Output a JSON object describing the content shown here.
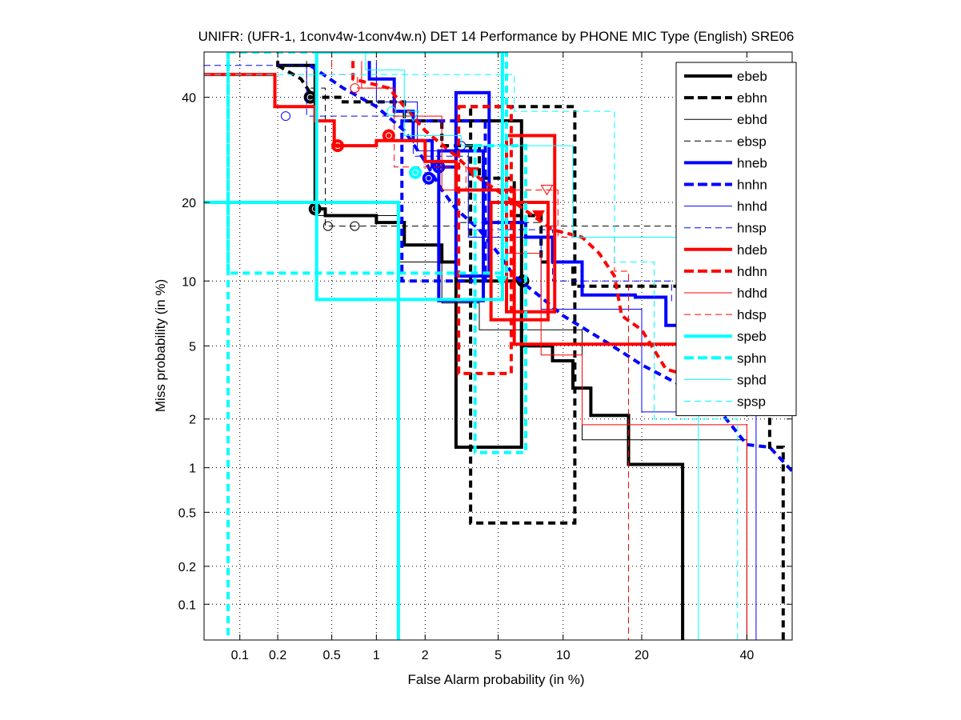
{
  "chart_data": {
    "type": "line",
    "subtype": "DET",
    "title": "UNIFR: (UFR-1, 1conv4w-1conv4w.n) DET 14 Performance by PHONE MIC Type (English) SRE06",
    "xlabel": "False Alarm probability (in %)",
    "ylabel": "Miss probability (in %)",
    "xscale": "probit",
    "yscale": "probit",
    "xlim": [
      0.05,
      50
    ],
    "ylim": [
      0.05,
      50
    ],
    "xticks": [
      0.1,
      0.2,
      0.5,
      1,
      2,
      5,
      10,
      20,
      40
    ],
    "xtick_labels": [
      "0.1",
      "0.2",
      "0.5",
      "1",
      "2",
      "5",
      "10",
      "20",
      "40"
    ],
    "yticks": [
      0.1,
      0.2,
      0.5,
      1,
      2,
      5,
      10,
      20,
      40
    ],
    "ytick_labels": [
      "0.1",
      "0.2",
      "0.5",
      "1",
      "2",
      "5",
      "10",
      "20",
      "40"
    ],
    "grid": true,
    "legend_position": "top-right",
    "series": [
      {
        "name": "ebeb",
        "color": "#000000",
        "style": "solid-thick",
        "x": [
          0.2,
          0.2,
          0.38,
          0.38,
          0.45,
          0.45,
          1.0,
          1.0,
          1.5,
          1.5,
          2.5,
          2.5,
          3.0,
          3.0,
          6.5,
          6.5,
          9.0,
          9.0,
          11.0,
          11.0,
          13.0,
          13.0,
          18.0,
          18.0,
          27.0,
          27.0
        ],
        "y": [
          48,
          47,
          47,
          19,
          19,
          18,
          18,
          17,
          17,
          14,
          14,
          12,
          12,
          10,
          10,
          5,
          5,
          4.2,
          4.2,
          3.0,
          3.0,
          2.1,
          2.1,
          1.05,
          1.05,
          0.05
        ],
        "markers": [
          {
            "x": 0.38,
            "y": 19,
            "shape": "circle-filled"
          },
          {
            "x": 6.6,
            "y": 10,
            "shape": "circle-filled"
          }
        ],
        "boxes": [
          {
            "x0": 3.0,
            "x1": 6.5,
            "y0": 1.35,
            "y1": 35
          }
        ]
      },
      {
        "name": "ebhn",
        "color": "#000000",
        "style": "dashed-thick",
        "x": [
          0.2,
          0.3,
          0.35,
          0.35,
          0.6,
          0.6,
          1.5,
          1.5,
          2.5,
          2.5,
          4.0,
          4.0,
          6.0,
          6.0,
          8.0,
          8.0,
          11.0,
          11.0,
          30,
          30,
          45,
          45,
          48,
          48
        ],
        "y": [
          47,
          44,
          41,
          40,
          40,
          39,
          39,
          35,
          35,
          30,
          30,
          24,
          24,
          18,
          18,
          12,
          12,
          9.5,
          9.5,
          8,
          8,
          1.35,
          1.35,
          0.05
        ],
        "markers": [
          {
            "x": 0.35,
            "y": 40,
            "shape": "circle-filled"
          }
        ],
        "boxes": [
          {
            "x0": 3.6,
            "x1": 11.2,
            "y0": 0.42,
            "y1": 38
          }
        ]
      },
      {
        "name": "ebhd",
        "color": "#000000",
        "style": "solid-thin",
        "x": [
          0.38,
          0.38,
          1.4,
          1.4,
          2.5,
          2.5,
          4.0,
          4.0,
          12,
          12,
          40,
          40
        ],
        "y": [
          45,
          18,
          18,
          12,
          12,
          8,
          8,
          6,
          6,
          1.5,
          1.5,
          0.05
        ],
        "markers": [],
        "boxes": []
      },
      {
        "name": "ebsp",
        "color": "#000000",
        "style": "dashed-thin",
        "x": [
          0.33,
          0.33,
          0.45,
          0.45,
          0.7,
          0.7,
          1.4,
          1.4,
          3.0,
          3.0,
          8.0,
          8.0,
          50
        ],
        "y": [
          48,
          42,
          42,
          16.5,
          16.5,
          16.5,
          16.5,
          16.5,
          16.5,
          17,
          17,
          16.5,
          16.5
        ],
        "markers": [
          {
            "x": 0.47,
            "y": 16.5,
            "shape": "circle-open"
          },
          {
            "x": 0.72,
            "y": 16.5,
            "shape": "circle-open"
          }
        ],
        "boxes": []
      },
      {
        "name": "hneb",
        "color": "#0000ff",
        "style": "solid-thick",
        "x": [
          0.9,
          0.9,
          1.3,
          1.3,
          1.7,
          1.7,
          2.2,
          2.2,
          3.0,
          3.0,
          4.2,
          4.2,
          6.8,
          6.8,
          9.0,
          9.0,
          12.0,
          12.0,
          19.0,
          19.0,
          24.0,
          24.0,
          28.0,
          28.0
        ],
        "y": [
          48,
          44,
          44,
          37,
          37,
          31,
          31,
          26,
          26,
          22,
          22,
          17,
          17,
          15,
          15,
          12,
          12,
          8.7,
          8.7,
          8.5,
          8.5,
          6.3,
          6.3,
          4.5
        ],
        "markers": [
          {
            "x": 2.4,
            "y": 26,
            "shape": "circle-filled"
          }
        ],
        "boxes": [
          {
            "x0": 3.0,
            "x1": 4.5,
            "y0": 10.5,
            "y1": 41
          },
          {
            "x0": 2.4,
            "x1": 4.2,
            "y0": 8.2,
            "y1": 29
          }
        ]
      },
      {
        "name": "hnhn",
        "color": "#0000ff",
        "style": "dashed-thick",
        "x": [
          0.35,
          0.6,
          1.0,
          1.5,
          2.0,
          2.5,
          3.0,
          4.0,
          5.0,
          6.0,
          8.0,
          10.0,
          15.0,
          20.0,
          25.0,
          30.0,
          35.0,
          40.0,
          45.0,
          50.0
        ],
        "y": [
          47,
          42,
          38,
          33,
          27,
          22,
          19,
          16,
          13,
          10.5,
          8.5,
          7.0,
          5.2,
          4.0,
          3.3,
          2.8,
          2.1,
          1.4,
          1.35,
          0.95
        ],
        "markers": [
          {
            "x": 2.1,
            "y": 24,
            "shape": "circle-filled"
          }
        ],
        "boxes": [
          {
            "x0": 1.45,
            "x1": 4.3,
            "y0": 10,
            "y1": 35
          }
        ]
      },
      {
        "name": "hnhd",
        "color": "#0000ff",
        "style": "solid-thin",
        "x": [
          1.0,
          1.0,
          1.8,
          1.8,
          3.5,
          3.5,
          8.0,
          8.0,
          20.0,
          20.0,
          42.0,
          42.0
        ],
        "y": [
          48,
          39,
          39,
          29,
          29,
          15,
          15,
          7.5,
          7.5,
          2.2,
          2.2,
          0.05
        ],
        "markers": [],
        "boxes": []
      },
      {
        "name": "hnsp",
        "color": "#0000ff",
        "style": "dashed-thin",
        "x": [
          0.05,
          0.33,
          0.33,
          1.7,
          1.7,
          3.5,
          3.5,
          9.0,
          9.0,
          25.0,
          25.0
        ],
        "y": [
          47,
          47,
          36,
          36,
          28,
          28,
          16,
          16,
          10,
          10,
          8
        ],
        "markers": [
          {
            "x": 0.23,
            "y": 36,
            "shape": "circle-open"
          },
          {
            "x": 3.2,
            "y": 30,
            "shape": "circle-open"
          }
        ],
        "boxes": []
      },
      {
        "name": "hdeb",
        "color": "#ff0000",
        "style": "solid-thick",
        "x": [
          0.05,
          0.19,
          0.19,
          0.38,
          0.38,
          0.52,
          0.52,
          1.0,
          1.0,
          2.0,
          2.0,
          3.0,
          3.0,
          6.0,
          6.0,
          27,
          27,
          50
        ],
        "y": [
          45,
          45,
          38,
          38,
          35,
          35,
          30,
          30,
          31,
          31,
          27,
          27,
          22,
          22,
          5.1,
          5.1,
          5.1,
          5.1
        ],
        "markers": [
          {
            "x": 0.55,
            "y": 30,
            "shape": "circle-filled"
          },
          {
            "x": 1.2,
            "y": 32,
            "shape": "circle-filled"
          },
          {
            "x": 3.7,
            "y": 25,
            "shape": "triangle-filled"
          }
        ],
        "boxes": [
          {
            "x0": 5.5,
            "x1": 9.2,
            "y0": 7.3,
            "y1": 32
          },
          {
            "x0": 4.6,
            "x1": 8.6,
            "y0": 6.7,
            "y1": 20
          }
        ]
      },
      {
        "name": "hdhn",
        "color": "#ff0000",
        "style": "dashed-thick",
        "x": [
          0.7,
          0.7,
          1.2,
          1.5,
          2.0,
          3.0,
          4.0,
          6.0,
          9.0,
          12.0,
          14.0,
          16.0,
          17.0,
          20.0,
          24.0,
          24.0,
          50.0
        ],
        "y": [
          48,
          44,
          42,
          38,
          33,
          28,
          24,
          20,
          16,
          15,
          13,
          10.5,
          7,
          6,
          3.8,
          3.8,
          2.4
        ],
        "markers": [
          {
            "x": 7.8,
            "y": 18,
            "shape": "triangle-filled"
          }
        ],
        "boxes": [
          {
            "x0": 3.1,
            "x1": 5.8,
            "y0": 3.6,
            "y1": 38
          }
        ]
      },
      {
        "name": "hdhd",
        "color": "#ff0000",
        "style": "solid-thin",
        "x": [
          0.8,
          0.8,
          1.3,
          1.3,
          2.5,
          2.5,
          5.5,
          5.5,
          8.0,
          8.0,
          12.0,
          12.0,
          40.0,
          40.0
        ],
        "y": [
          48,
          42,
          42,
          36,
          36,
          22,
          22,
          13,
          13,
          4.5,
          4.5,
          1.85,
          1.85,
          0.05
        ],
        "markers": [],
        "boxes": []
      },
      {
        "name": "hdsp",
        "color": "#ff0000",
        "style": "dashed-thin",
        "x": [
          0.5,
          0.5,
          0.75,
          0.75,
          1.3,
          1.3,
          3.4,
          3.4,
          9.5,
          9.5,
          16.0,
          16.0,
          18.0,
          18.0
        ],
        "y": [
          48,
          45,
          45,
          42,
          42,
          26,
          26,
          22,
          22,
          15,
          15,
          11,
          11,
          0.05
        ],
        "markers": [
          {
            "x": 0.72,
            "y": 42,
            "shape": "circle-open"
          },
          {
            "x": 8.5,
            "y": 22,
            "shape": "triangle-open"
          }
        ],
        "boxes": []
      },
      {
        "name": "speb",
        "color": "#00ffff",
        "style": "solid-thick",
        "x": [
          0.05,
          1.38,
          1.38
        ],
        "y": [
          20,
          20,
          0.05
        ],
        "markers": [
          {
            "x": 1.75,
            "y": 25,
            "shape": "circle-filled"
          },
          {
            "x": 5.2,
            "y": 10,
            "shape": "triangle-filled"
          }
        ],
        "boxes": [
          {
            "x0": 0.39,
            "x1": 5.25,
            "y0": 8.3,
            "y1": 50
          }
        ]
      },
      {
        "name": "sphn",
        "color": "#00ffff",
        "style": "dashed-thick",
        "x": [
          0.08,
          0.08
        ],
        "y": [
          50,
          0.05
        ],
        "markers": [],
        "boxes": [
          {
            "x0": 0.08,
            "x1": 5.5,
            "y0": 10.8,
            "y1": 50
          },
          {
            "x0": 3.8,
            "x1": 6.8,
            "y0": 1.25,
            "y1": 30
          }
        ]
      },
      {
        "name": "sphd",
        "color": "#00ffff",
        "style": "solid-thin",
        "x": [
          0.85,
          0.85,
          1.5,
          1.5,
          3.2,
          3.2,
          11.0,
          11.0,
          30.0,
          30.0
        ],
        "y": [
          50,
          46,
          46,
          32,
          32,
          30,
          30,
          15,
          15,
          0.05
        ],
        "markers": [
          {
            "x": 1.25,
            "y": 37,
            "shape": "circle-open"
          }
        ],
        "boxes": []
      },
      {
        "name": "spsp",
        "color": "#00ffff",
        "style": "dashed-thin",
        "x": [
          0.05,
          6.0,
          6.0,
          16.0,
          16.0,
          22.0,
          22.0,
          38.0,
          38.0
        ],
        "y": [
          45,
          45,
          37,
          37,
          12,
          12,
          2.0,
          2.0,
          0.05
        ],
        "markers": [
          {
            "x": 1.7,
            "y": 36,
            "shape": "triangle-open"
          }
        ],
        "boxes": []
      }
    ]
  }
}
